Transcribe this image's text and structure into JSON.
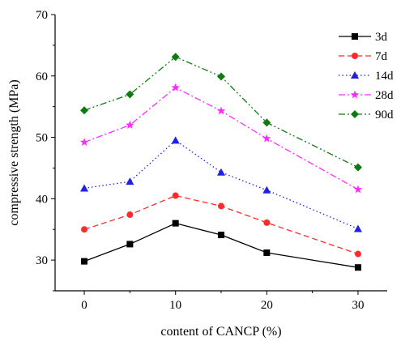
{
  "chart_data": {
    "type": "line",
    "xlabel": "content of CANCP (%)",
    "ylabel": "compressive strength (MPa)",
    "x": [
      0,
      5,
      10,
      15,
      20,
      30
    ],
    "xlim": [
      -3.2,
      33.2
    ],
    "ylim": [
      25,
      70
    ],
    "xticks": [
      0,
      10,
      20,
      30
    ],
    "yticks": [
      30,
      40,
      50,
      60,
      70
    ],
    "legend_position": "top-right",
    "series": [
      {
        "name": "3d",
        "values": [
          29.8,
          32.6,
          36.0,
          34.1,
          31.2,
          28.8
        ],
        "color": "#000000",
        "dash": "solid",
        "marker": "square"
      },
      {
        "name": "7d",
        "values": [
          35.0,
          37.4,
          40.5,
          38.8,
          36.1,
          31.0
        ],
        "color": "#ff2b2b",
        "dash": "dashed",
        "marker": "circle"
      },
      {
        "name": "14d",
        "values": [
          41.7,
          42.8,
          49.5,
          44.3,
          41.4,
          35.1
        ],
        "color": "#1f1fe6",
        "dash": "dotted",
        "marker": "triangle"
      },
      {
        "name": "28d",
        "values": [
          49.2,
          52.0,
          58.1,
          54.3,
          49.8,
          41.5
        ],
        "color": "#ff2bff",
        "dash": "dashdot",
        "marker": "star"
      },
      {
        "name": "90d",
        "values": [
          54.4,
          57.0,
          63.1,
          59.9,
          52.4,
          45.1
        ],
        "color": "#0f7a0f",
        "dash": "dashdotdot",
        "marker": "diamond"
      }
    ]
  }
}
